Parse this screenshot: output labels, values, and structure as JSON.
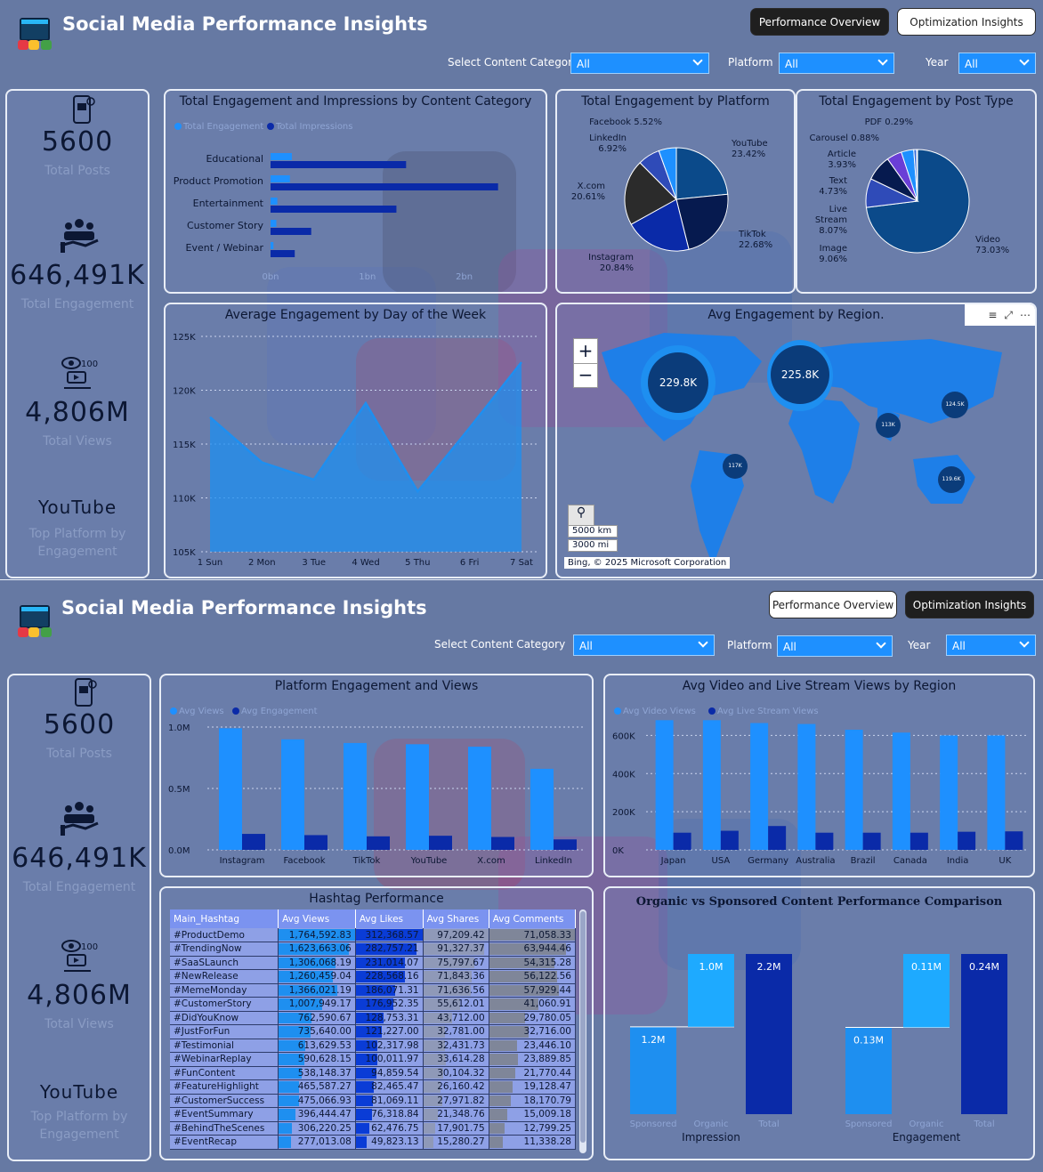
{
  "title": "Social Media Performance Insights",
  "nav": {
    "performance": "Performance Overview",
    "optimization": "Optimization Insights"
  },
  "filters": {
    "category_label": "Select Content Category",
    "platform_label": "Platform",
    "year_label": "Year",
    "category_value": "All",
    "platform_value": "All",
    "year_value": "All"
  },
  "kpis": {
    "posts": {
      "value": "5600",
      "label": "Total Posts"
    },
    "engagement": {
      "value": "646,491K",
      "label": "Total Engagement"
    },
    "views": {
      "value": "4,806M",
      "label": "Total Views"
    },
    "platform": {
      "value": "YouTube",
      "label1": "Top Platform by",
      "label2": "Engagement"
    }
  },
  "panels": {
    "cat_title": "Total Engagement and Impressions by Content Category",
    "platform_title": "Total Engagement by Platform",
    "posttype_title": "Total Engagement by Post Type",
    "day_title": "Average Engagement by Day of the Week",
    "region_title": "Avg Engagement by Region.",
    "plat_views_title": "Platform Engagement and Views",
    "video_title": "Avg Video and Live Stream Views by Region",
    "hashtag_title": "Hashtag Performance",
    "organic_title": "Organic vs Sponsored Content Performance Comparison"
  },
  "map": {
    "bubbles": [
      "229.8K",
      "225.8K",
      "124.5K",
      "113K",
      "117K",
      "119.6K"
    ],
    "scale_km": "5000 km",
    "scale_mi": "3000 mi",
    "credit": "Bing, © 2025 Microsoft Corporation",
    "zoom_in": "+",
    "zoom_out": "−"
  },
  "chart_data": [
    {
      "type": "bar",
      "title": "Total Engagement and Impressions by Content Category",
      "orientation": "horizontal",
      "categories": [
        "Educational",
        "Product Promotion",
        "Entertainment",
        "Customer Story",
        "Event / Webinar"
      ],
      "series": [
        {
          "name": "Total Engagement",
          "values": [
            0.22,
            0.2,
            0.07,
            0.06,
            0.03
          ],
          "color": "#1e90ff"
        },
        {
          "name": "Total Impressions",
          "values": [
            1.4,
            2.35,
            1.3,
            0.42,
            0.25
          ],
          "color": "#0a2aa8"
        }
      ],
      "xticks": [
        "0bn",
        "1bn",
        "2bn"
      ],
      "xlim": [
        0,
        2.5
      ]
    },
    {
      "type": "pie",
      "title": "Total Engagement by Platform",
      "slices": [
        {
          "label": "YouTube",
          "pct": "23.42%",
          "value": 23.42,
          "color": "#0b4a8a"
        },
        {
          "label": "TikTok",
          "pct": "22.68%",
          "value": 22.68,
          "color": "#061a4f"
        },
        {
          "label": "Instagram",
          "pct": "20.84%",
          "value": 20.84,
          "color": "#0a2aa8"
        },
        {
          "label": "X.com",
          "pct": "20.61%",
          "value": 20.61,
          "color": "#2b2b2b"
        },
        {
          "label": "LinkedIn",
          "pct": "6.92%",
          "value": 6.92,
          "color": "#2f4bb8"
        },
        {
          "label": "Facebook",
          "pct": "5.52%",
          "value": 5.52,
          "color": "#1e90ff"
        }
      ]
    },
    {
      "type": "pie",
      "title": "Total Engagement by Post Type",
      "slices": [
        {
          "label": "Video",
          "pct": "73.03%",
          "value": 73.03,
          "color": "#0b4a8a"
        },
        {
          "label": "Image",
          "pct": "9.06%",
          "value": 9.06,
          "color": "#2f4bb8"
        },
        {
          "label": "Live Stream",
          "pct": "8.07%",
          "value": 8.07,
          "color": "#061a4f"
        },
        {
          "label": "Text",
          "pct": "4.73%",
          "value": 4.73,
          "color": "#6a3ed6"
        },
        {
          "label": "Article",
          "pct": "3.93%",
          "value": 3.93,
          "color": "#1e90ff"
        },
        {
          "label": "Carousel",
          "pct": "0.88%",
          "value": 0.88,
          "color": "#3a6fd8"
        },
        {
          "label": "PDF",
          "pct": "0.29%",
          "value": 0.29,
          "color": "#0a2aa8"
        }
      ]
    },
    {
      "type": "area",
      "title": "Average Engagement by Day of the Week",
      "categories": [
        "1 Sun",
        "2 Mon",
        "3 Tue",
        "4 Wed",
        "5 Thu",
        "6 Fri",
        "7 Sat"
      ],
      "values": [
        117500,
        113300,
        111700,
        118800,
        110600,
        116500,
        122600
      ],
      "yticks": [
        "105K",
        "110K",
        "115K",
        "120K",
        "125K"
      ],
      "ylim": [
        105000,
        125000
      ]
    },
    {
      "type": "bar",
      "title": "Platform Engagement and Views",
      "categories": [
        "Instagram",
        "Facebook",
        "TikTok",
        "YouTube",
        "X.com",
        "LinkedIn"
      ],
      "series": [
        {
          "name": "Avg Views",
          "values": [
            0.99,
            0.9,
            0.87,
            0.86,
            0.84,
            0.66
          ],
          "color": "#1e90ff"
        },
        {
          "name": "Avg Engagement",
          "values": [
            0.13,
            0.12,
            0.11,
            0.115,
            0.105,
            0.085
          ],
          "color": "#0a2aa8"
        }
      ],
      "yticks": [
        "0.0M",
        "0.5M",
        "1.0M"
      ],
      "ylim": [
        0,
        1.0
      ]
    },
    {
      "type": "bar",
      "title": "Avg Video and Live Stream Views by Region",
      "categories": [
        "Japan",
        "USA",
        "Germany",
        "Australia",
        "Brazil",
        "Canada",
        "India",
        "UK"
      ],
      "series": [
        {
          "name": "Avg Video Views",
          "values": [
            680000,
            680000,
            665000,
            660000,
            630000,
            615000,
            600000,
            600000
          ],
          "color": "#1e90ff"
        },
        {
          "name": "Avg Live Stream Views",
          "values": [
            90000,
            100000,
            125000,
            90000,
            90000,
            90000,
            95000,
            97000
          ],
          "color": "#0a2aa8"
        }
      ],
      "yticks": [
        "0K",
        "200K",
        "400K",
        "600K"
      ],
      "ylim": [
        0,
        700000
      ]
    },
    {
      "type": "table",
      "title": "Hashtag Performance",
      "columns": [
        "Main_Hashtag",
        "Avg Views",
        "Avg Likes",
        "Avg Shares",
        "Avg Comments"
      ],
      "rows": [
        [
          "#ProductDemo",
          "1,764,592.83",
          "312,368.57",
          "97,209.42",
          "71,058.33"
        ],
        [
          "#TrendingNow",
          "1,623,663.06",
          "282,757.21",
          "91,327.37",
          "63,944.46"
        ],
        [
          "#SaaSLaunch",
          "1,306,068.19",
          "231,014.07",
          "75,797.67",
          "54,315.28"
        ],
        [
          "#NewRelease",
          "1,260,459.04",
          "228,568.16",
          "71,843.36",
          "56,122.56"
        ],
        [
          "#MemeMonday",
          "1,366,021.19",
          "186,071.31",
          "71,636.56",
          "57,929.44"
        ],
        [
          "#CustomerStory",
          "1,007,949.17",
          "176,952.35",
          "55,612.01",
          "41,060.91"
        ],
        [
          "#DidYouKnow",
          "762,590.67",
          "128,753.31",
          "43,712.00",
          "29,780.05"
        ],
        [
          "#JustForFun",
          "735,640.00",
          "121,227.00",
          "32,781.00",
          "32,716.00"
        ],
        [
          "#Testimonial",
          "613,629.53",
          "102,317.98",
          "32,431.73",
          "23,446.10"
        ],
        [
          "#WebinarReplay",
          "590,628.15",
          "100,011.97",
          "33,614.28",
          "23,889.85"
        ],
        [
          "#FunContent",
          "538,148.37",
          "94,859.54",
          "30,104.32",
          "21,770.44"
        ],
        [
          "#FeatureHighlight",
          "465,587.27",
          "82,465.47",
          "26,160.42",
          "19,128.47"
        ],
        [
          "#CustomerSuccess",
          "475,066.93",
          "81,069.11",
          "27,971.82",
          "18,170.79"
        ],
        [
          "#EventSummary",
          "396,444.47",
          "76,318.84",
          "21,348.76",
          "15,009.18"
        ],
        [
          "#BehindTheScenes",
          "306,220.25",
          "62,476.75",
          "17,901.75",
          "12,799.25"
        ],
        [
          "#EventRecap",
          "277,013.08",
          "49,823.13",
          "15,280.27",
          "11,338.28"
        ]
      ]
    },
    {
      "type": "waterfall",
      "title": "Organic vs Sponsored Content Performance Comparison",
      "groups": [
        {
          "name": "Impression",
          "categories": [
            "Sponsored",
            "Organic",
            "Total"
          ],
          "values": [
            1.2,
            1.0,
            2.2
          ],
          "labels": [
            "1.2M",
            "1.0M",
            "2.2M"
          ]
        },
        {
          "name": "Engagement",
          "categories": [
            "Sponsored",
            "Organic",
            "Total"
          ],
          "values": [
            0.13,
            0.11,
            0.24
          ],
          "labels": [
            "0.13M",
            "0.11M",
            "0.24M"
          ]
        }
      ]
    }
  ]
}
